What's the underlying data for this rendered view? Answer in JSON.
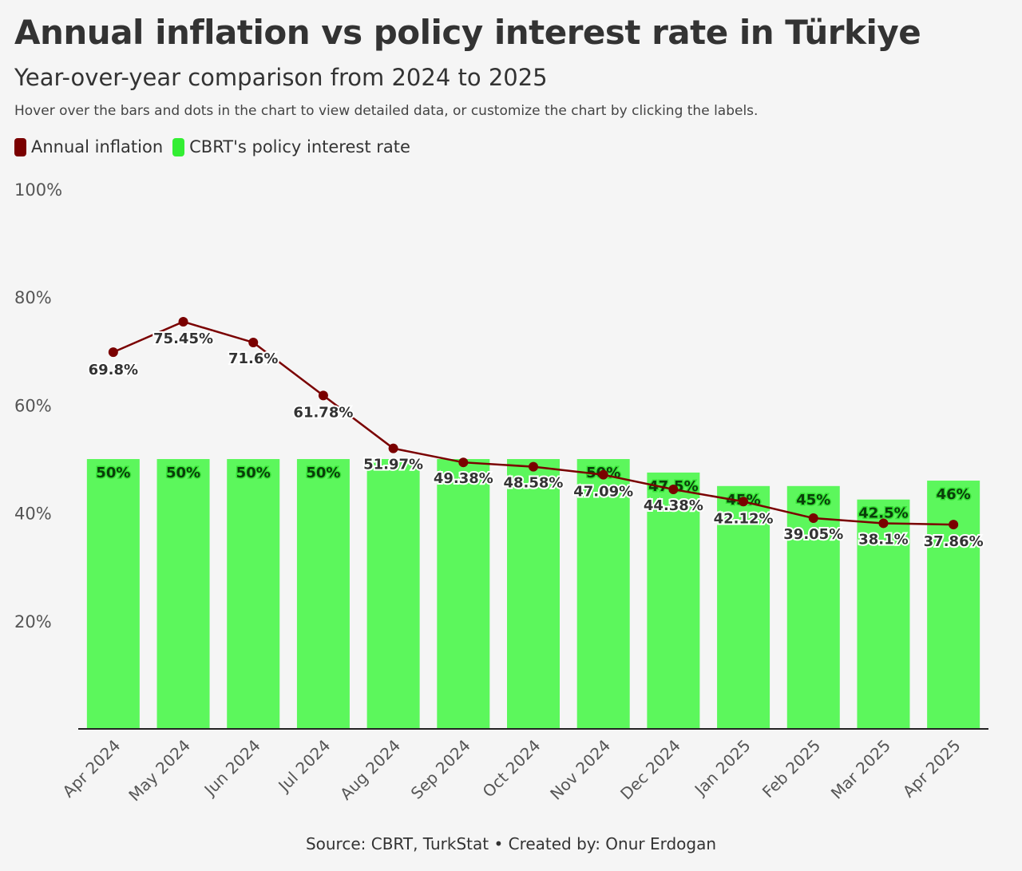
{
  "header": {
    "title": "Annual inflation vs policy interest rate in Türkiye",
    "subtitle": "Year-over-year comparison from 2024 to 2025",
    "note": "Hover over the bars and dots in the chart to view detailed data, or customize the chart by clicking the labels."
  },
  "legend": [
    {
      "label": "Annual inflation",
      "color": "#7a0000"
    },
    {
      "label": "CBRT's policy interest rate",
      "color": "#33ee33"
    }
  ],
  "footer": {
    "source": "Source: CBRT, TurkStat • Created by: Onur Erdogan"
  },
  "chart_data": {
    "type": "bar+line",
    "categories": [
      "Apr 2024",
      "May 2024",
      "Jun 2024",
      "Jul 2024",
      "Aug 2024",
      "Sep 2024",
      "Oct 2024",
      "Nov 2024",
      "Dec 2024",
      "Jan 2025",
      "Feb 2025",
      "Mar 2025",
      "Apr 2025"
    ],
    "series": [
      {
        "name": "CBRT's policy interest rate",
        "type": "bar",
        "color": "#5cf75c",
        "values": [
          50,
          50,
          50,
          50,
          50,
          50,
          50,
          50,
          47.5,
          45,
          45,
          42.5,
          46
        ],
        "labels": [
          "50%",
          "50%",
          "50%",
          "50%",
          "",
          "",
          "",
          "50%",
          "47.5%",
          "45%",
          "45%",
          "42.5%",
          "46%"
        ]
      },
      {
        "name": "Annual inflation",
        "type": "line",
        "color": "#7a0000",
        "values": [
          69.8,
          75.45,
          71.6,
          61.78,
          51.97,
          49.38,
          48.58,
          47.09,
          44.38,
          42.12,
          39.05,
          38.1,
          37.86
        ],
        "labels": [
          "69.8%",
          "75.45%",
          "71.6%",
          "61.78%",
          "51.97%",
          "49.38%",
          "48.58%",
          "47.09%",
          "44.38%",
          "42.12%",
          "39.05%",
          "38.1%",
          "37.86%"
        ]
      }
    ],
    "ylim": [
      0,
      100
    ],
    "yticks": [
      20,
      40,
      60,
      80,
      100
    ],
    "ytick_labels": [
      "20%",
      "40%",
      "60%",
      "80%",
      "100%"
    ],
    "legend_position": "top-left",
    "grid": false
  }
}
